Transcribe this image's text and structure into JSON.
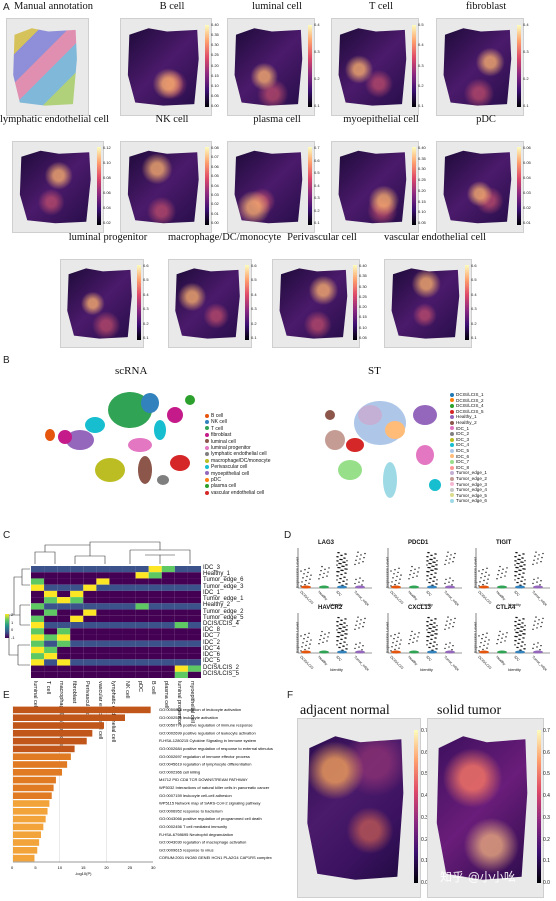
{
  "panels": {
    "A": "A",
    "B": "B",
    "C": "C",
    "D": "D",
    "E": "E",
    "F": "F"
  },
  "panelA": {
    "maps": [
      {
        "title": "Manual annotation",
        "ticks": []
      },
      {
        "title": "B cell",
        "ticks": [
          "0.40",
          "0.35",
          "0.30",
          "0.25",
          "0.20",
          "0.15",
          "0.10",
          "0.05",
          "0.00"
        ]
      },
      {
        "title": "luminal cell",
        "ticks": [
          "0.4",
          "0.3",
          "0.2",
          "0.1"
        ]
      },
      {
        "title": "T cell",
        "ticks": [
          "0.5",
          "0.4",
          "0.3",
          "0.2",
          "0.1"
        ]
      },
      {
        "title": "fibroblast",
        "ticks": [
          "0.4",
          "0.3",
          "0.2",
          "0.1"
        ]
      },
      {
        "title": "lymphatic endothelial cell",
        "ticks": [
          "0.12",
          "0.10",
          "0.08",
          "0.06",
          "0.04",
          "0.02"
        ]
      },
      {
        "title": "NK cell",
        "ticks": [
          "0.08",
          "0.07",
          "0.06",
          "0.05",
          "0.04",
          "0.03",
          "0.02",
          "0.01",
          "0.00"
        ]
      },
      {
        "title": "plasma cell",
        "ticks": [
          "0.7",
          "0.6",
          "0.5",
          "0.4",
          "0.3",
          "0.2",
          "0.1"
        ]
      },
      {
        "title": "myoepithelial cell",
        "ticks": [
          "0.40",
          "0.35",
          "0.30",
          "0.25",
          "0.20",
          "0.15",
          "0.10",
          "0.05"
        ]
      },
      {
        "title": "pDC",
        "ticks": [
          "0.06",
          "0.05",
          "0.04",
          "0.03",
          "0.02",
          "0.01"
        ]
      },
      {
        "title": "luminal progenitor",
        "ticks": [
          "0.6",
          "0.5",
          "0.4",
          "0.3",
          "0.2",
          "0.1"
        ]
      },
      {
        "title": "macrophage/DC/monocyte",
        "ticks": [
          "0.6",
          "0.5",
          "0.4",
          "0.3",
          "0.2",
          "0.1"
        ]
      },
      {
        "title": "Perivascular cell",
        "ticks": [
          "0.40",
          "0.35",
          "0.30",
          "0.25",
          "0.20",
          "0.15",
          "0.10",
          "0.05"
        ]
      },
      {
        "title": "vascular endothelial cell",
        "ticks": [
          "0.6",
          "0.5",
          "0.4",
          "0.3",
          "0.2",
          "0.1"
        ]
      }
    ]
  },
  "panelB": {
    "left_title": "scRNA",
    "right_title": "ST",
    "left_legend": [
      {
        "label": "B cell",
        "color": "#e6550d"
      },
      {
        "label": "NK cell",
        "color": "#3182bd"
      },
      {
        "label": "T cell",
        "color": "#31a354"
      },
      {
        "label": "fibroblast",
        "color": "#c51b8a"
      },
      {
        "label": "luminal cell",
        "color": "#8c564b"
      },
      {
        "label": "luminal progenitor",
        "color": "#e377c2"
      },
      {
        "label": "lymphatic endothelial cell",
        "color": "#7f7f7f"
      },
      {
        "label": "macrophage/DC/monocyte",
        "color": "#bcbd22"
      },
      {
        "label": "Perivascular cell",
        "color": "#17becf"
      },
      {
        "label": "myoepithelial cell",
        "color": "#9467bd"
      },
      {
        "label": "pDC",
        "color": "#ff7f0e"
      },
      {
        "label": "plasma cell",
        "color": "#2ca02c"
      },
      {
        "label": "vascular endothelial cell",
        "color": "#d62728"
      }
    ],
    "right_legend": [
      {
        "label": "DCIS/LCIS_1",
        "color": "#1f77b4"
      },
      {
        "label": "DCIS/LCIS_2",
        "color": "#ff7f0e"
      },
      {
        "label": "DCIS/LCIS_4",
        "color": "#2ca02c"
      },
      {
        "label": "DCIS/LCIS_5",
        "color": "#d62728"
      },
      {
        "label": "Healthy_1",
        "color": "#9467bd"
      },
      {
        "label": "Healthy_2",
        "color": "#8c564b"
      },
      {
        "label": "IDC_1",
        "color": "#e377c2"
      },
      {
        "label": "IDC_2",
        "color": "#7f7f7f"
      },
      {
        "label": "IDC_3",
        "color": "#bcbd22"
      },
      {
        "label": "IDC_4",
        "color": "#17becf"
      },
      {
        "label": "IDC_5",
        "color": "#aec7e8"
      },
      {
        "label": "IDC_6",
        "color": "#ffbb78"
      },
      {
        "label": "IDC_7",
        "color": "#98df8a"
      },
      {
        "label": "IDC_8",
        "color": "#ff9896"
      },
      {
        "label": "Tumor_edge_1",
        "color": "#c5b0d5"
      },
      {
        "label": "Tumor_edge_2",
        "color": "#c49c94"
      },
      {
        "label": "Tumor_edge_3",
        "color": "#f7b6d2"
      },
      {
        "label": "Tumor_edge_4",
        "color": "#c7c7c7"
      },
      {
        "label": "Tumor_edge_5",
        "color": "#dbdb8d"
      },
      {
        "label": "Tumor_edge_6",
        "color": "#9edae5"
      }
    ]
  },
  "panelC": {
    "rows": [
      "IDC_3",
      "Healthy_1",
      "Tumor_edge_6",
      "Tumor_edge_3",
      "IDC_1",
      "Tumor_edge_1",
      "Healthy_2",
      "Tumor_edge_2",
      "Tumor_edge_5",
      "DCIS/LCIS_4",
      "IDC_8",
      "IDC_7",
      "IDC_2",
      "IDC_4",
      "IDC_6",
      "IDC_5",
      "DCIS/LCIS_2",
      "DCIS/LCIS_5"
    ],
    "cols": [
      "luminal cell",
      "T cell",
      "macrophage/DC/monocyte",
      "fibroblast",
      "Perivascular cell",
      "vascular endothelial cell",
      "lymphatic endothelial cell",
      "NK cell",
      "pDC",
      "B cell",
      "plasma cell",
      "luminal progenitor",
      "myoepithelial cell"
    ],
    "scale_ticks": [
      "2",
      "1",
      "0",
      "-1"
    ]
  },
  "panelD": {
    "genes": [
      "LAG3",
      "PDCD1",
      "TIGIT",
      "HAVCR2",
      "CXCL13",
      "CTLA4"
    ],
    "ylabel": "Expression Level",
    "xlabel": "Identity",
    "groups": [
      "DCIS/LCIS",
      "Healthy",
      "IDC",
      "Tumor_edge"
    ]
  },
  "panelE": {
    "terms": [
      "GO:0050868 regulation of leukocyte activation",
      "GO:0002521 leukocyte activation",
      "GO:0050776 positive regulation of immune response",
      "GO:0002699 positive regulation of leukocyte activation",
      "R-HSA-1280215 Cytokine Signaling in Immune system",
      "GO:0002684 positive regulation of response to external stimulus",
      "GO:0002697 regulation of immune effector process",
      "GO:0045619 regulation of lymphocyte differentiation",
      "GO:0002366 cell killing",
      "M4712 PID CD8 TCR DOWNSTREAM PATHWAY",
      "WP5032 Interactions of natural killer cells in pancreatic cancer",
      "GO:0007159 leukocyte cell-cell adhesion",
      "WP5115 Network map of SARS-CoV-2 signaling pathway",
      "GO:0006952 response to bacterium",
      "GO:0043066 positive regulation of programmed cell death",
      "GO:0002456 T cell mediated immunity",
      "R-HSA-6798695 Neutrophil degranulation",
      "GO:0043030 regulation of macrophage activation",
      "GO:0009615 response to virus",
      "CORUM:2001 INO80 GENEI HCN1 PLA2G4 CAP1RS complex"
    ],
    "values": [
      29.5,
      24.0,
      19.5,
      17.0,
      15.8,
      13.2,
      12.4,
      11.6,
      10.5,
      9.2,
      8.7,
      8.3,
      7.8,
      7.4,
      7.0,
      6.5,
      6.0,
      5.6,
      5.2,
      4.6
    ],
    "x_ticks": [
      "0",
      "5",
      "10",
      "15",
      "20",
      "25",
      "30"
    ],
    "xlabel": "-log10(P)"
  },
  "panelF": {
    "left_title": "adjacent normal",
    "right_title": "solid tumor",
    "ticks": [
      "0.7",
      "0.6",
      "0.5",
      "0.4",
      "0.3",
      "0.2",
      "0.1",
      "0.0"
    ],
    "watermark": "知乎 @小小吆"
  }
}
